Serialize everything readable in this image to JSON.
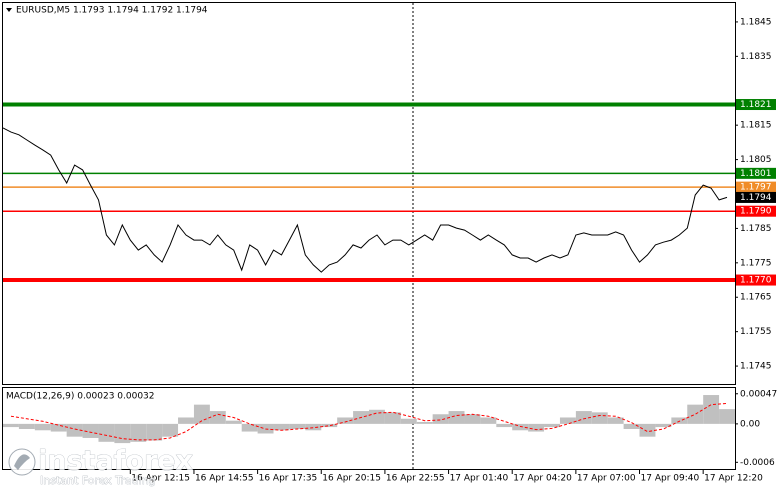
{
  "chart_data": [
    {
      "type": "line",
      "title": "EURUSD,M5  1.1793 1.1794 1.1792 1.1794",
      "series": [
        {
          "color": "#000000",
          "values": [
            1.18142,
            1.1813,
            1.18122,
            1.18107,
            1.18092,
            1.18078,
            1.18063,
            1.1802,
            1.17982,
            1.18034,
            1.1802,
            1.17976,
            1.17933,
            1.17831,
            1.17802,
            1.1786,
            1.17816,
            1.17787,
            1.17802,
            1.17773,
            1.17752,
            1.17802,
            1.1786,
            1.17831,
            1.17816,
            1.17816,
            1.17802,
            1.17831,
            1.17802,
            1.17787,
            1.17729,
            1.17802,
            1.17787,
            1.17744,
            1.17787,
            1.17773,
            1.17816,
            1.1786,
            1.17773,
            1.17744,
            1.17723,
            1.17744,
            1.17752,
            1.17773,
            1.17802,
            1.17793,
            1.17816,
            1.17831,
            1.17802,
            1.17816,
            1.17816,
            1.17802,
            1.17816,
            1.17831,
            1.17816,
            1.1786,
            1.1786,
            1.17851,
            1.17845,
            1.17831,
            1.17816,
            1.17831,
            1.17816,
            1.17802,
            1.17773,
            1.17764,
            1.17764,
            1.17752,
            1.17764,
            1.17773,
            1.17764,
            1.17773,
            1.17831,
            1.17837,
            1.17831,
            1.17831,
            1.17831,
            1.1784,
            1.17831,
            1.17787,
            1.17752,
            1.17773,
            1.17802,
            1.1781,
            1.17816,
            1.17831,
            1.17851,
            1.17947,
            1.17976,
            1.17967,
            1.17933,
            1.1794
          ]
        }
      ],
      "xlim": [
        0,
        92
      ],
      "xticks": [
        {
          "value": 16,
          "label": "16 Apr 12:15"
        },
        {
          "value": 24,
          "label": "16 Apr 14:55"
        },
        {
          "value": 32,
          "label": "16 Apr 17:35"
        },
        {
          "value": 40,
          "label": "16 Apr 20:15"
        },
        {
          "value": 48,
          "label": "16 Apr 22:55"
        },
        {
          "value": 56,
          "label": "17 Apr 01:40"
        },
        {
          "value": 64,
          "label": "17 Apr 04:20"
        },
        {
          "value": 72,
          "label": "17 Apr 07:00"
        },
        {
          "value": 80,
          "label": "17 Apr 09:40"
        },
        {
          "value": 88,
          "label": "17 Apr 12:20"
        }
      ],
      "ylim": [
        1.17395,
        1.18505
      ],
      "yticks": [
        1.1845,
        1.1835,
        1.1815,
        1.1805,
        1.1785,
        1.1775,
        1.1765,
        1.1755,
        1.1745
      ],
      "levels": [
        {
          "value": 1.1821,
          "color": "#008000",
          "thick": true
        },
        {
          "value": 1.1801,
          "color": "#008000",
          "thick": false
        },
        {
          "value": 1.1797,
          "color": "#f08c28",
          "thick": false
        },
        {
          "value": 1.179,
          "label": "1.1790",
          "color": "#ff0000",
          "thick": false
        },
        {
          "value": 1.177,
          "label": "1.1770",
          "color": "#ff0000",
          "thick": true
        }
      ],
      "last_price": {
        "value": 1.1794,
        "color": "#000000"
      }
    },
    {
      "type": "macd",
      "title": "MACD(12,26,9) 0.00023 0.00032",
      "histogram": {
        "color": "#c0c0c0",
        "values": [
          -5e-05,
          -8e-05,
          -0.0001,
          -0.00012,
          -0.0002,
          -0.00022,
          -0.00028,
          -0.0003,
          -0.00028,
          -0.00026,
          -0.0002,
          0.0001,
          0.0003,
          0.0002,
          5e-05,
          -0.00012,
          -0.00015,
          -0.0001,
          -8e-05,
          -0.0001,
          -5e-05,
          0.0001,
          0.0002,
          0.00022,
          0.00018,
          8e-05,
          3e-05,
          0.00015,
          0.0002,
          0.00015,
          0.0001,
          -5e-05,
          -0.0001,
          -0.00012,
          -5e-05,
          0.0001,
          0.0002,
          0.00018,
          0.0001,
          -8e-05,
          -0.0002,
          -5e-05,
          0.0001,
          0.0003,
          0.00045,
          0.00023
        ]
      },
      "signal": {
        "color": "#ff0000",
        "values": [
          0.00012,
          8e-05,
          4e-05,
          -2e-05,
          -8e-05,
          -0.00013,
          -0.00018,
          -0.00023,
          -0.00025,
          -0.00025,
          -0.00022,
          -0.00012,
          5e-05,
          0.00015,
          0.0001,
          0,
          -8e-05,
          -0.0001,
          -8e-05,
          -6e-05,
          -3e-05,
          3e-05,
          0.0001,
          0.00017,
          0.00018,
          0.00012,
          5e-05,
          6e-05,
          0.00013,
          0.00015,
          0.00012,
          4e-05,
          -4e-05,
          -9e-05,
          -7e-05,
          0,
          8e-05,
          0.00013,
          0.00012,
          2e-05,
          -0.00012,
          -8e-05,
          4e-05,
          0.00015,
          0.0003,
          0.00032
        ]
      },
      "xlim": [
        0,
        46
      ],
      "ylim": [
        -0.00072,
        0.00056
      ],
      "yticks": [
        0.00047,
        {
          "value": 0,
          "label": "0.00"
        },
        {
          "value": -0.0006,
          "label": "-0.0006"
        }
      ]
    }
  ],
  "watermark": {
    "brand": "instaforex",
    "tagline": "Instant Forex Trading"
  }
}
